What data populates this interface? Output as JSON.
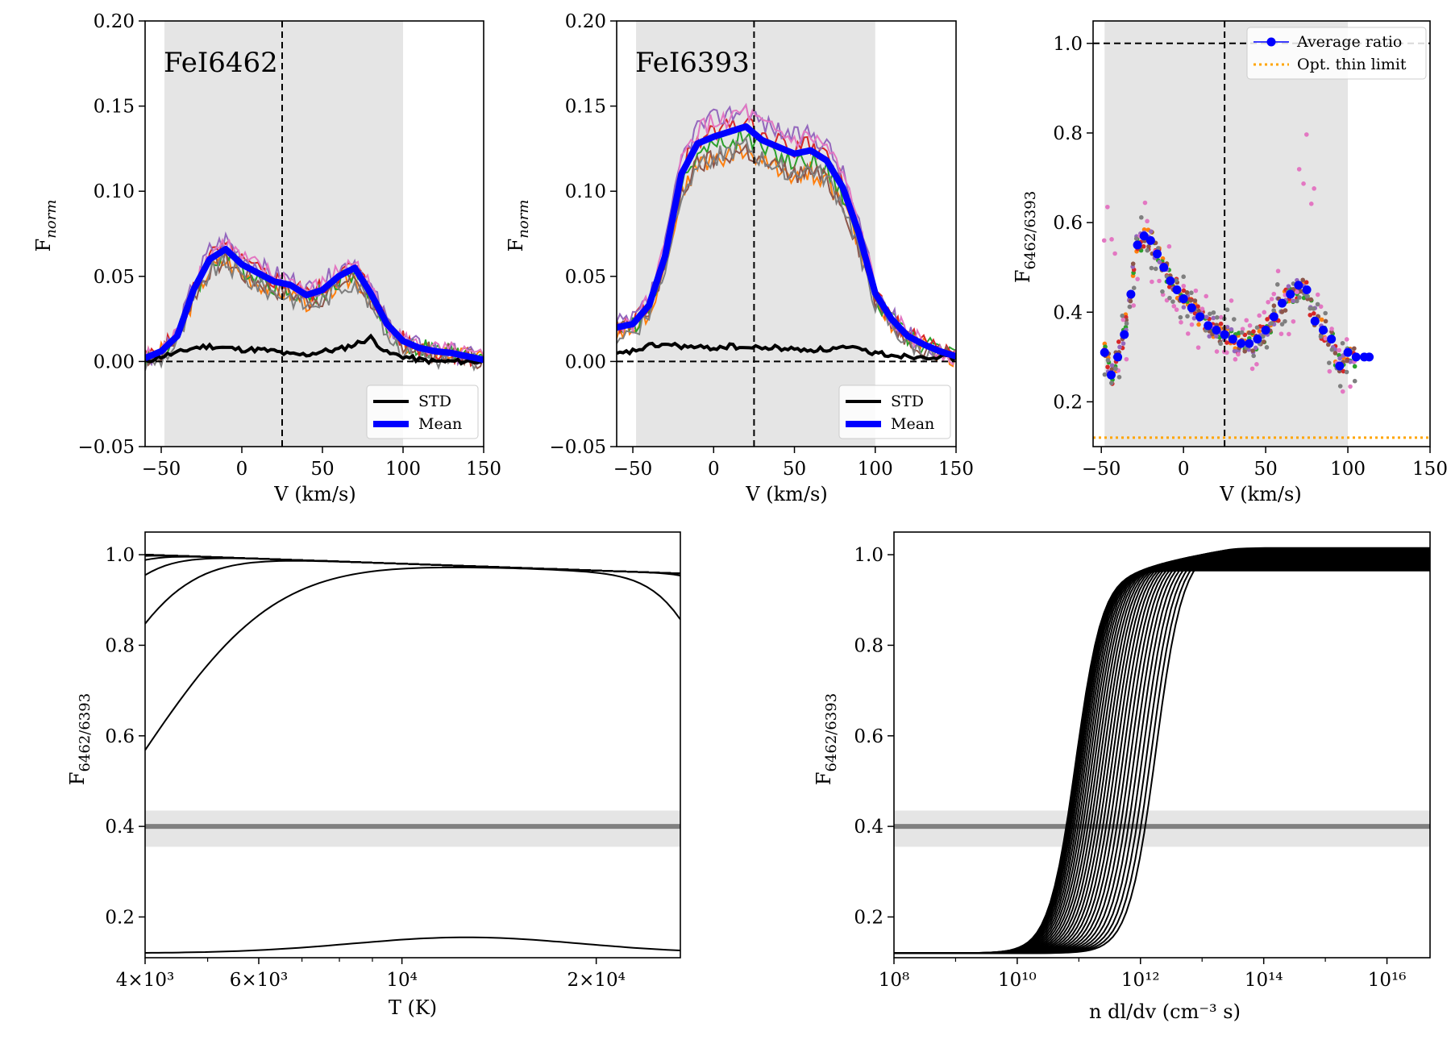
{
  "chart_data": [
    {
      "id": "p1",
      "type": "line",
      "title": "FeI6462",
      "xlabel": "V (km/s)",
      "ylabel": "F",
      "ylabel_sub": "norm",
      "xlim": [
        -60,
        150
      ],
      "ylim": [
        -0.05,
        0.2
      ],
      "xticks": [
        -50,
        0,
        50,
        100,
        150
      ],
      "xtick_labels": [
        "−50",
        "0",
        "50",
        "100",
        "150"
      ],
      "yticks": [
        -0.05,
        0.0,
        0.05,
        0.1,
        0.15,
        0.2
      ],
      "ytick_labels": [
        "−0.05",
        "0.00",
        "0.05",
        "0.10",
        "0.15",
        "0.20"
      ],
      "shade_x": [
        -48,
        100
      ],
      "vline": 25,
      "hline": 0.0,
      "legend": {
        "position": "lower-right",
        "entries": [
          {
            "label": "STD",
            "color": "#000000"
          },
          {
            "label": "Mean",
            "color": "#0000ff"
          }
        ]
      },
      "series": [
        {
          "name": "Mean",
          "color": "#0000ff",
          "x": [
            -60,
            -50,
            -40,
            -30,
            -20,
            -10,
            0,
            10,
            20,
            30,
            40,
            50,
            60,
            70,
            80,
            90,
            100,
            110,
            120,
            130,
            140,
            150
          ],
          "y": [
            0.002,
            0.006,
            0.015,
            0.042,
            0.06,
            0.066,
            0.057,
            0.052,
            0.047,
            0.045,
            0.039,
            0.042,
            0.05,
            0.055,
            0.04,
            0.022,
            0.012,
            0.008,
            0.006,
            0.005,
            0.003,
            0.001
          ]
        },
        {
          "name": "STD",
          "color": "#000000",
          "x": [
            -60,
            -50,
            -40,
            -30,
            -20,
            -10,
            0,
            10,
            20,
            30,
            40,
            50,
            60,
            70,
            80,
            90,
            100,
            110,
            120,
            130,
            140,
            150
          ],
          "y": [
            0.0,
            0.003,
            0.005,
            0.008,
            0.009,
            0.008,
            0.007,
            0.007,
            0.006,
            0.004,
            0.004,
            0.006,
            0.007,
            0.01,
            0.014,
            0.005,
            0.003,
            0.001,
            0.0,
            0.0,
            0.0,
            0.0
          ]
        }
      ]
    },
    {
      "id": "p2",
      "type": "line",
      "title": "FeI6393",
      "xlabel": "V (km/s)",
      "ylabel": "F",
      "ylabel_sub": "norm",
      "xlim": [
        -60,
        150
      ],
      "ylim": [
        -0.05,
        0.2
      ],
      "xticks": [
        -50,
        0,
        50,
        100,
        150
      ],
      "xtick_labels": [
        "−50",
        "0",
        "50",
        "100",
        "150"
      ],
      "yticks": [
        -0.05,
        0.0,
        0.05,
        0.1,
        0.15,
        0.2
      ],
      "ytick_labels": [
        "−0.05",
        "0.00",
        "0.05",
        "0.10",
        "0.15",
        "0.20"
      ],
      "shade_x": [
        -48,
        100
      ],
      "vline": 25,
      "hline": 0.0,
      "legend": {
        "position": "lower-right",
        "entries": [
          {
            "label": "STD",
            "color": "#000000"
          },
          {
            "label": "Mean",
            "color": "#0000ff"
          }
        ]
      },
      "series": [
        {
          "name": "Mean",
          "color": "#0000ff",
          "x": [
            -60,
            -50,
            -40,
            -30,
            -20,
            -10,
            0,
            10,
            20,
            30,
            40,
            50,
            60,
            70,
            80,
            90,
            100,
            110,
            120,
            130,
            140,
            150
          ],
          "y": [
            0.02,
            0.022,
            0.033,
            0.062,
            0.11,
            0.128,
            0.132,
            0.135,
            0.138,
            0.13,
            0.126,
            0.122,
            0.124,
            0.118,
            0.102,
            0.075,
            0.04,
            0.025,
            0.015,
            0.01,
            0.006,
            0.003
          ]
        },
        {
          "name": "STD",
          "color": "#000000",
          "x": [
            -60,
            -50,
            -40,
            -30,
            -20,
            -10,
            0,
            10,
            20,
            30,
            40,
            50,
            60,
            70,
            80,
            90,
            100,
            110,
            120,
            130,
            140,
            150
          ],
          "y": [
            0.004,
            0.006,
            0.009,
            0.01,
            0.009,
            0.008,
            0.008,
            0.009,
            0.008,
            0.008,
            0.008,
            0.007,
            0.007,
            0.007,
            0.008,
            0.007,
            0.005,
            0.004,
            0.003,
            0.003,
            0.003,
            0.002
          ]
        }
      ]
    },
    {
      "id": "p3",
      "type": "scatter",
      "xlabel": "V (km/s)",
      "ylabel": "F",
      "ylabel_sub": "6462/6393",
      "xlim": [
        -55,
        150
      ],
      "ylim": [
        0.1,
        1.05
      ],
      "xticks": [
        -50,
        0,
        50,
        100,
        150
      ],
      "xtick_labels": [
        "−50",
        "0",
        "50",
        "100",
        "150"
      ],
      "yticks": [
        0.2,
        0.4,
        0.6,
        0.8,
        1.0
      ],
      "ytick_labels": [
        "0.2",
        "0.4",
        "0.6",
        "0.8",
        "1.0"
      ],
      "shade_x": [
        -48,
        100
      ],
      "vline": 25,
      "hline": 1.0,
      "opt_thin_limit": 0.12,
      "legend": {
        "position": "top-right",
        "entries": [
          {
            "label": "Average ratio",
            "color": "#0000ff"
          },
          {
            "label": "Opt. thin limit",
            "color": "#ffa500"
          }
        ]
      },
      "series": [
        {
          "name": "Average ratio",
          "color": "#0000ff",
          "x": [
            -48,
            -44,
            -40,
            -36,
            -32,
            -28,
            -24,
            -20,
            -16,
            -12,
            -8,
            -4,
            0,
            5,
            10,
            15,
            20,
            25,
            30,
            35,
            40,
            45,
            50,
            55,
            60,
            65,
            70,
            75,
            80,
            85,
            90,
            95,
            100,
            105,
            110,
            113
          ],
          "y": [
            0.31,
            0.26,
            0.3,
            0.35,
            0.44,
            0.55,
            0.57,
            0.56,
            0.53,
            0.5,
            0.47,
            0.45,
            0.43,
            0.41,
            0.39,
            0.37,
            0.36,
            0.35,
            0.34,
            0.33,
            0.33,
            0.34,
            0.36,
            0.39,
            0.42,
            0.44,
            0.46,
            0.45,
            0.38,
            0.36,
            0.34,
            0.28,
            0.31,
            0.3,
            0.3,
            0.3
          ]
        }
      ]
    },
    {
      "id": "p4",
      "type": "line",
      "xscale": "log",
      "xlabel": "T (K)",
      "ylabel": "F",
      "ylabel_sub": "6462/6393",
      "xlim": [
        4000,
        27000
      ],
      "ylim": [
        0.11,
        1.05
      ],
      "xticks": [
        4000,
        6000,
        10000,
        20000
      ],
      "xtick_labels": [
        "4×10³",
        "6×10³",
        "10⁴",
        "2×10⁴"
      ],
      "yticks": [
        0.2,
        0.4,
        0.6,
        0.8,
        1.0
      ],
      "ytick_labels": [
        "0.2",
        "0.4",
        "0.6",
        "0.8",
        "1.0"
      ],
      "hband": [
        0.355,
        0.435
      ],
      "hline": 0.4,
      "curve_count": 27,
      "series": []
    },
    {
      "id": "p5",
      "type": "line",
      "xscale": "log",
      "xlabel": "n dl/dv (cm⁻³ s)",
      "ylabel": "F",
      "ylabel_sub": "6462/6393",
      "xlim": [
        100000000,
        50000000000000000
      ],
      "ylim": [
        0.11,
        1.05
      ],
      "xticks": [
        100000000,
        10000000000,
        1000000000000,
        100000000000000,
        10000000000000000
      ],
      "xtick_labels": [
        "10⁸",
        "10¹⁰",
        "10¹²",
        "10¹⁴",
        "10¹⁶"
      ],
      "yticks": [
        0.2,
        0.4,
        0.6,
        0.8,
        1.0
      ],
      "ytick_labels": [
        "0.2",
        "0.4",
        "0.6",
        "0.8",
        "1.0"
      ],
      "hband": [
        0.355,
        0.435
      ],
      "hline": 0.4,
      "curve_count": 30,
      "series": []
    }
  ]
}
